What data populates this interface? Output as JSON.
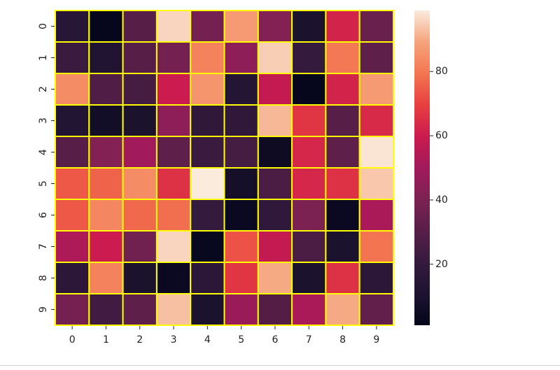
{
  "chart_data": {
    "type": "heatmap",
    "title": "",
    "xlabel": "",
    "ylabel": "",
    "x_categories": [
      "0",
      "1",
      "2",
      "3",
      "4",
      "5",
      "6",
      "7",
      "8",
      "9"
    ],
    "y_categories": [
      "0",
      "1",
      "2",
      "3",
      "4",
      "5",
      "6",
      "7",
      "8",
      "9"
    ],
    "values": [
      [
        15,
        2,
        30,
        96,
        38,
        87,
        42,
        10,
        62,
        35
      ],
      [
        22,
        12,
        30,
        38,
        82,
        45,
        95,
        20,
        80,
        32
      ],
      [
        84,
        28,
        25,
        60,
        86,
        14,
        58,
        2,
        62,
        87
      ],
      [
        13,
        7,
        10,
        45,
        18,
        18,
        92,
        67,
        30,
        64
      ],
      [
        30,
        42,
        50,
        32,
        22,
        25,
        5,
        63,
        32,
        98
      ],
      [
        74,
        76,
        84,
        66,
        99,
        8,
        27,
        63,
        66,
        94
      ],
      [
        74,
        83,
        77,
        78,
        20,
        4,
        18,
        40,
        4,
        52
      ],
      [
        53,
        60,
        37,
        96,
        3,
        73,
        58,
        27,
        10,
        79
      ],
      [
        17,
        82,
        10,
        4,
        17,
        67,
        90,
        10,
        66,
        17
      ],
      [
        38,
        24,
        32,
        93,
        10,
        48,
        29,
        52,
        90,
        33
      ]
    ],
    "colorbar": {
      "ticks": [
        20,
        40,
        60,
        80
      ],
      "range": [
        1,
        99
      ]
    },
    "colormap": "rocket",
    "cell_border_color": "#ffff00"
  }
}
